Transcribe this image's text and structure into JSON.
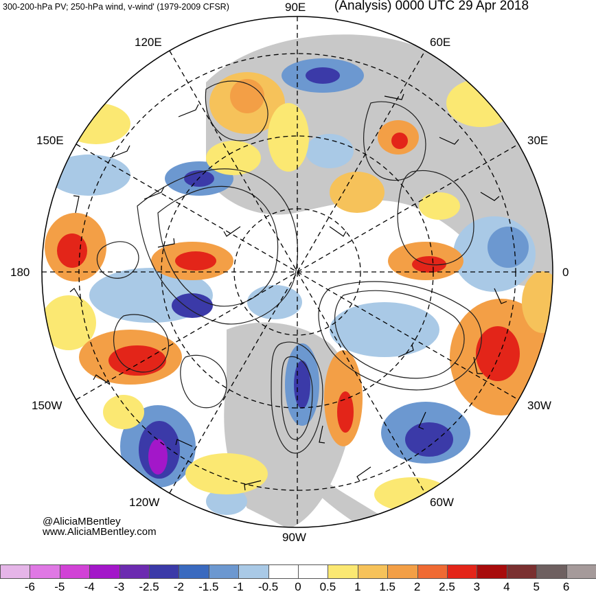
{
  "header": {
    "left_title": "300-200-hPa PV; 250-hPa wind, v-wind' (1979-2009 CFSR)",
    "right_title": "(Analysis) 0000 UTC 29 Apr 2018"
  },
  "longitude_labels": {
    "lon_90e": "90E",
    "lon_60e": "60E",
    "lon_120e": "120E",
    "lon_150e": "150E",
    "lon_30e": "30E",
    "lon_180": "180",
    "lon_0": "0",
    "lon_150w": "150W",
    "lon_30w": "30W",
    "lon_120w": "120W",
    "lon_60w": "60W",
    "lon_90w": "90W"
  },
  "credits": {
    "handle": "@AliciaMBentley",
    "website": "www.AliciaMBentley.com"
  },
  "colorbar": {
    "colors": [
      "#e5b5e8",
      "#df78e4",
      "#d142d6",
      "#a317c9",
      "#6c2bb0",
      "#3b3aa8",
      "#3a6abf",
      "#6c98d0",
      "#a9c9e6",
      "#ffffff",
      "#ffffff",
      "#fbe872",
      "#f6c25a",
      "#f39f46",
      "#ef6a33",
      "#e32519",
      "#a80c0c",
      "#7a3030",
      "#6e6060",
      "#a59a9a"
    ],
    "ticks": [
      "-6",
      "-5",
      "-4",
      "-3",
      "-2.5",
      "-2",
      "-1.5",
      "-1",
      "-0.5",
      "0",
      "0.5",
      "1",
      "1.5",
      "2",
      "2.5",
      "3",
      "4",
      "5",
      "6"
    ]
  }
}
